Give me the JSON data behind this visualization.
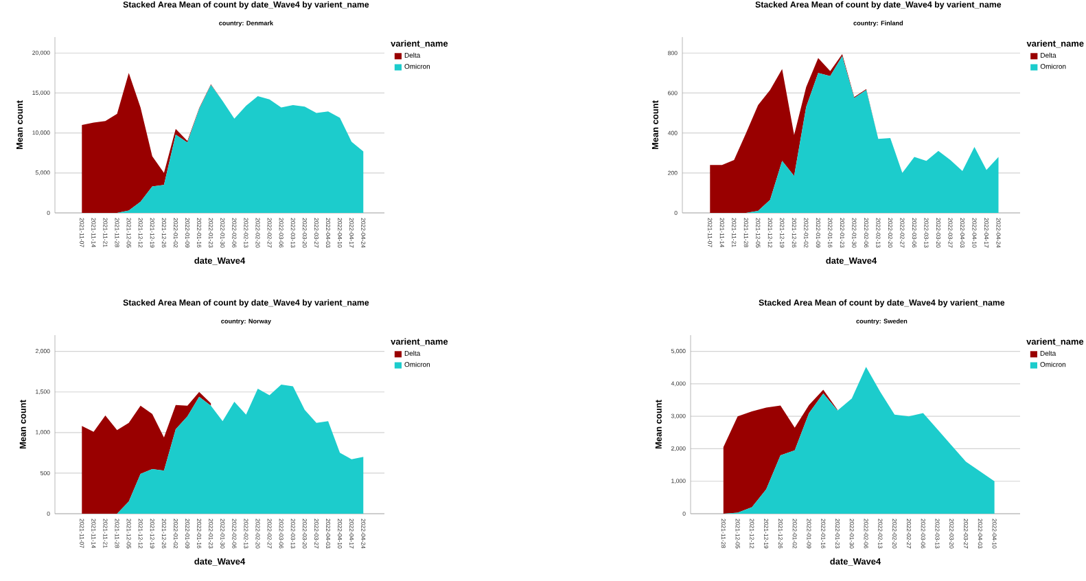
{
  "chart_data": [
    {
      "type": "area",
      "stacked": true,
      "title": "Stacked Area Mean of count by date_Wave4 by varient_name",
      "subtitle": "country: Denmark",
      "xlabel": "date_Wave4",
      "ylabel": "Mean count",
      "legend_title": "varient_name",
      "legend": "right",
      "grid": "y",
      "categories": [
        "2021-11-07",
        "2021-11-14",
        "2021-11-21",
        "2021-11-28",
        "2021-12-05",
        "2021-12-12",
        "2021-12-19",
        "2021-12-26",
        "2022-01-02",
        "2022-01-09",
        "2022-01-16",
        "2022-01-23",
        "2022-01-30",
        "2022-02-06",
        "2022-02-13",
        "2022-02-20",
        "2022-02-27",
        "2022-03-06",
        "2022-03-13",
        "2022-03-20",
        "2022-03-27",
        "2022-04-03",
        "2022-04-10",
        "2022-04-17",
        "2022-04-24"
      ],
      "ylim": [
        0,
        22000
      ],
      "yticks": [
        0,
        {
          "value": 5000,
          "label": "5,000"
        },
        {
          "value": 10000,
          "label": "10,000"
        },
        {
          "value": 15000,
          "label": "15,000"
        },
        {
          "value": 20000,
          "label": "20,000"
        }
      ],
      "series": [
        {
          "name": "Omicron",
          "color": "#1ccccc",
          "values": [
            0,
            0,
            0,
            0,
            300,
            1400,
            3300,
            3500,
            9800,
            8800,
            13000,
            16000,
            14000,
            11800,
            13400,
            14600,
            14200,
            13200,
            13500,
            13300,
            12500,
            12700,
            11900,
            8900,
            7700
          ]
        },
        {
          "name": "Delta",
          "color": "#990000",
          "values": [
            11000,
            11300,
            11500,
            12400,
            17200,
            11800,
            3800,
            1500,
            700,
            200,
            100,
            100,
            0,
            0,
            0,
            0,
            0,
            0,
            0,
            0,
            0,
            0,
            0,
            0,
            0
          ]
        }
      ]
    },
    {
      "type": "area",
      "stacked": true,
      "title": "Stacked Area Mean of count by date_Wave4 by varient_name",
      "subtitle": "country: Finland",
      "xlabel": "date_Wave4",
      "ylabel": "Mean count",
      "legend_title": "varient_name",
      "legend": "right",
      "grid": "y",
      "categories": [
        "2021-11-07",
        "2021-11-14",
        "2021-11-21",
        "2021-11-28",
        "2021-12-05",
        "2021-12-12",
        "2021-12-19",
        "2021-12-26",
        "2022-01-02",
        "2022-01-09",
        "2022-01-16",
        "2022-01-23",
        "2022-01-30",
        "2022-02-06",
        "2022-02-13",
        "2022-02-20",
        "2022-02-27",
        "2022-03-06",
        "2022-03-13",
        "2022-03-20",
        "2022-03-27",
        "2022-04-03",
        "2022-04-10",
        "2022-04-17",
        "2022-04-24"
      ],
      "ylim": [
        0,
        880
      ],
      "yticks": [
        0,
        200,
        400,
        600,
        800
      ],
      "series": [
        {
          "name": "Omicron",
          "color": "#1ccccc",
          "values": [
            0,
            0,
            0,
            0,
            10,
            65,
            260,
            185,
            530,
            700,
            685,
            785,
            575,
            615,
            370,
            375,
            200,
            280,
            260,
            310,
            265,
            210,
            330,
            215,
            280
          ]
        },
        {
          "name": "Delta",
          "color": "#990000",
          "values": [
            240,
            240,
            265,
            400,
            530,
            550,
            460,
            205,
            100,
            75,
            25,
            10,
            5,
            5,
            0,
            0,
            0,
            0,
            0,
            0,
            0,
            0,
            0,
            0,
            0
          ]
        }
      ]
    },
    {
      "type": "area",
      "stacked": true,
      "title": "Stacked Area Mean of count by date_Wave4 by varient_name",
      "subtitle": "country: Norway",
      "xlabel": "date_Wave4",
      "ylabel": "Mean count",
      "legend_title": "varient_name",
      "legend": "right",
      "grid": "y",
      "categories": [
        "2021-11-07",
        "2021-11-14",
        "2021-11-21",
        "2021-11-28",
        "2021-12-05",
        "2021-12-12",
        "2021-12-19",
        "2021-12-26",
        "2022-01-02",
        "2022-01-09",
        "2022-01-16",
        "2022-01-23",
        "2022-01-30",
        "2022-02-06",
        "2022-02-13",
        "2022-02-20",
        "2022-02-27",
        "2022-03-06",
        "2022-03-13",
        "2022-03-20",
        "2022-03-27",
        "2022-04-03",
        "2022-04-10",
        "2022-04-17",
        "2022-04-24"
      ],
      "ylim": [
        0,
        2200
      ],
      "yticks": [
        0,
        500,
        {
          "value": 1000,
          "label": "1,000"
        },
        {
          "value": 1500,
          "label": "1,500"
        },
        {
          "value": 2000,
          "label": "2,000"
        }
      ],
      "series": [
        {
          "name": "Omicron",
          "color": "#1ccccc",
          "values": [
            0,
            0,
            0,
            0,
            150,
            490,
            550,
            530,
            1040,
            1200,
            1440,
            1330,
            1140,
            1380,
            1220,
            1540,
            1460,
            1590,
            1570,
            1280,
            1120,
            1140,
            750,
            670,
            700
          ]
        },
        {
          "name": "Delta",
          "color": "#990000",
          "values": [
            1080,
            1010,
            1210,
            1030,
            970,
            840,
            680,
            410,
            300,
            130,
            60,
            30,
            null,
            null,
            null,
            null,
            null,
            null,
            null,
            null,
            null,
            null,
            null,
            null,
            null
          ]
        }
      ]
    },
    {
      "type": "area",
      "stacked": true,
      "title": "Stacked Area Mean of count by date_Wave4 by varient_name",
      "subtitle": "country: Sweden",
      "xlabel": "date_Wave4",
      "ylabel": "Mean count",
      "legend_title": "varient_name",
      "legend": "right",
      "grid": "y",
      "categories": [
        "2021-11-28",
        "2021-12-05",
        "2021-12-12",
        "2021-12-19",
        "2021-12-26",
        "2022-01-02",
        "2022-01-09",
        "2022-01-16",
        "2022-01-23",
        "2022-01-30",
        "2022-02-06",
        "2022-02-13",
        "2022-02-20",
        "2022-02-27",
        "2022-03-06",
        "2022-03-13",
        "2022-03-20",
        "2022-03-27",
        "2022-04-03",
        "2022-04-10"
      ],
      "ylim": [
        0,
        5500
      ],
      "yticks": [
        0,
        {
          "value": 1000,
          "label": "1,000"
        },
        {
          "value": 2000,
          "label": "2,000"
        },
        {
          "value": 3000,
          "label": "3,000"
        },
        {
          "value": 4000,
          "label": "4,000"
        },
        {
          "value": 5000,
          "label": "5,000"
        }
      ],
      "series": [
        {
          "name": "Omicron",
          "color": "#1ccccc",
          "values": [
            0,
            30,
            200,
            750,
            1800,
            1950,
            3100,
            3700,
            3180,
            3550,
            4520,
            3750,
            3050,
            3000,
            3100,
            2600,
            2100,
            1600,
            1300,
            1000
          ]
        },
        {
          "name": "Delta",
          "color": "#990000",
          "values": [
            2050,
            2970,
            2950,
            2520,
            1530,
            700,
            250,
            120,
            20,
            null,
            null,
            null,
            null,
            null,
            null,
            null,
            null,
            null,
            null,
            null
          ]
        }
      ]
    }
  ]
}
